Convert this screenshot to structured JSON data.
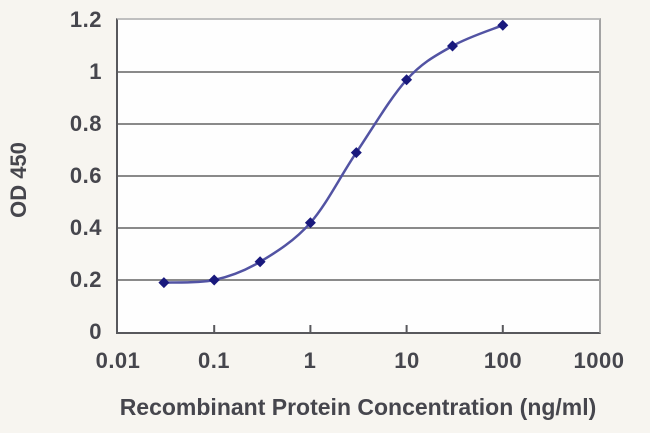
{
  "chart_data": {
    "type": "line",
    "title": "",
    "xlabel": "Recombinant Protein Concentration (ng/ml)",
    "ylabel": "OD 450",
    "x_scale": "log",
    "xlim": [
      0.01,
      1000
    ],
    "ylim": [
      0,
      1.2
    ],
    "x_ticks": [
      "0.01",
      "0.1",
      "1",
      "10",
      "100",
      "1000"
    ],
    "y_ticks": [
      "0",
      "0.2",
      "0.4",
      "0.6",
      "0.8",
      "1",
      "1.2"
    ],
    "grid": "horizontal",
    "legend_position": "none",
    "series": [
      {
        "x": [
          0.03,
          0.1,
          0.3,
          1,
          3,
          10,
          30,
          100
        ],
        "y": [
          0.19,
          0.2,
          0.27,
          0.42,
          0.69,
          0.97,
          1.1,
          1.18
        ],
        "marker": "diamond",
        "line_color": "#5253a3",
        "marker_color": "#19197d"
      }
    ],
    "grid_color": "#8a8a8a",
    "tick_color": "#58585c",
    "text_color": "#46464d",
    "plot_background": "#fefefe",
    "figure_background": "#f7f5f0"
  }
}
